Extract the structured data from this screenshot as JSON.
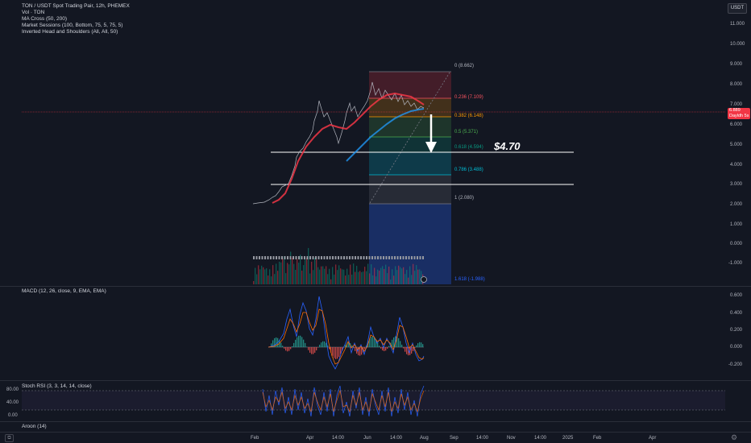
{
  "header": {
    "title": "TON / USDT Spot Trading Pair, 12h, PHEMEX",
    "indicators": [
      "Vol · TON",
      "MA Cross (50, 200)",
      "Market Sessions (100, Bottom, 75, 5, 75, 5)",
      "Inverted Head and Shoulders (All, All, 50)"
    ],
    "currency_button": "USDT"
  },
  "price_axis": {
    "ticks": [
      "11.000",
      "10.000",
      "9.000",
      "8.000",
      "7.000",
      "6.000",
      "5.000",
      "4.000",
      "3.000",
      "2.000",
      "1.000",
      "0.000",
      "-1.000"
    ],
    "last_price": "6.889",
    "last_price_sub": "Dayldh 5s",
    "colors": {
      "last_price": "#f23645"
    }
  },
  "fib": {
    "levels": [
      {
        "label": "0 (8.662)",
        "color": "#787b86"
      },
      {
        "label": "0.236 (7.109)",
        "color": "#f7525f"
      },
      {
        "label": "0.382 (6.148)",
        "color": "#ff9800"
      },
      {
        "label": "0.5 (5.371)",
        "color": "#4caf50"
      },
      {
        "label": "0.618 (4.594)",
        "color": "#089981"
      },
      {
        "label": "0.786 (3.488)",
        "color": "#00bcd4"
      },
      {
        "label": "1 (2.080)",
        "color": "#787b86"
      },
      {
        "label": "1.618 (-1.988)",
        "color": "#2962ff"
      }
    ]
  },
  "annotation": {
    "target": "$4.70"
  },
  "macd": {
    "title": "MACD (12, 26, close, 9, EMA, EMA)",
    "ticks": [
      "0.600",
      "0.400",
      "0.200",
      "0.000",
      "-0.200"
    ]
  },
  "stoch": {
    "title": "Stoch RSI (3, 3, 14, 14, close)",
    "ticks": [
      "80.00",
      "40.00",
      "0.00"
    ]
  },
  "aroon": {
    "title": "Aroon (14)"
  },
  "time_axis": {
    "labels": [
      "Feb",
      "Apr",
      "14:00",
      "Jun",
      "14:00",
      "Aug",
      "Sep",
      "14:00",
      "Nov",
      "14:00",
      "2025",
      "Feb",
      "Apr"
    ]
  },
  "icons": {
    "settings": "gear-icon",
    "layout": "layout-icon",
    "event": "lightning-icon"
  }
}
